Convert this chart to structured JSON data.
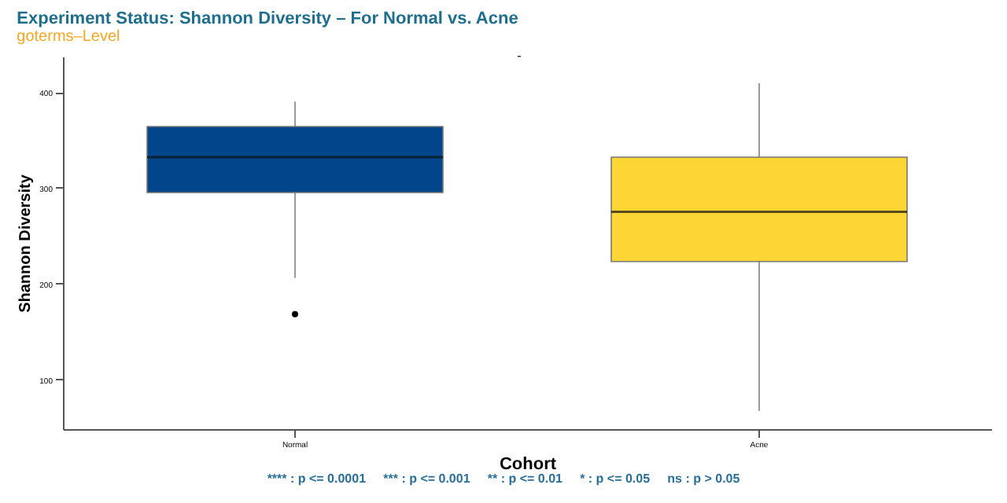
{
  "chart_data": {
    "type": "box",
    "title": "Experiment Status: Shannon Diversity – For Normal vs. Acne",
    "subtitle": "goterms–Level",
    "xlabel": "Cohort",
    "ylabel": "Shannon Diversity",
    "categories": [
      "Normal",
      "Acne"
    ],
    "colors": [
      "#03458a",
      "#fdd535"
    ],
    "boxes": [
      {
        "low": 206,
        "q1": 295,
        "median": 332,
        "q3": 364,
        "high": 390,
        "outliers": [
          168
        ]
      },
      {
        "low": 67,
        "q1": 223,
        "median": 275,
        "q3": 332,
        "high": 409
      }
    ],
    "ylim": [
      48,
      437
    ],
    "yticks": [
      100,
      200,
      300,
      400
    ],
    "grid": false,
    "legend": false,
    "annotations": [
      "-",
      "**** : p <= 0.0001     *** : p <= 0.001     ** : p <= 0.01     * : p <= 0.05     ns : p > 0.05"
    ]
  }
}
